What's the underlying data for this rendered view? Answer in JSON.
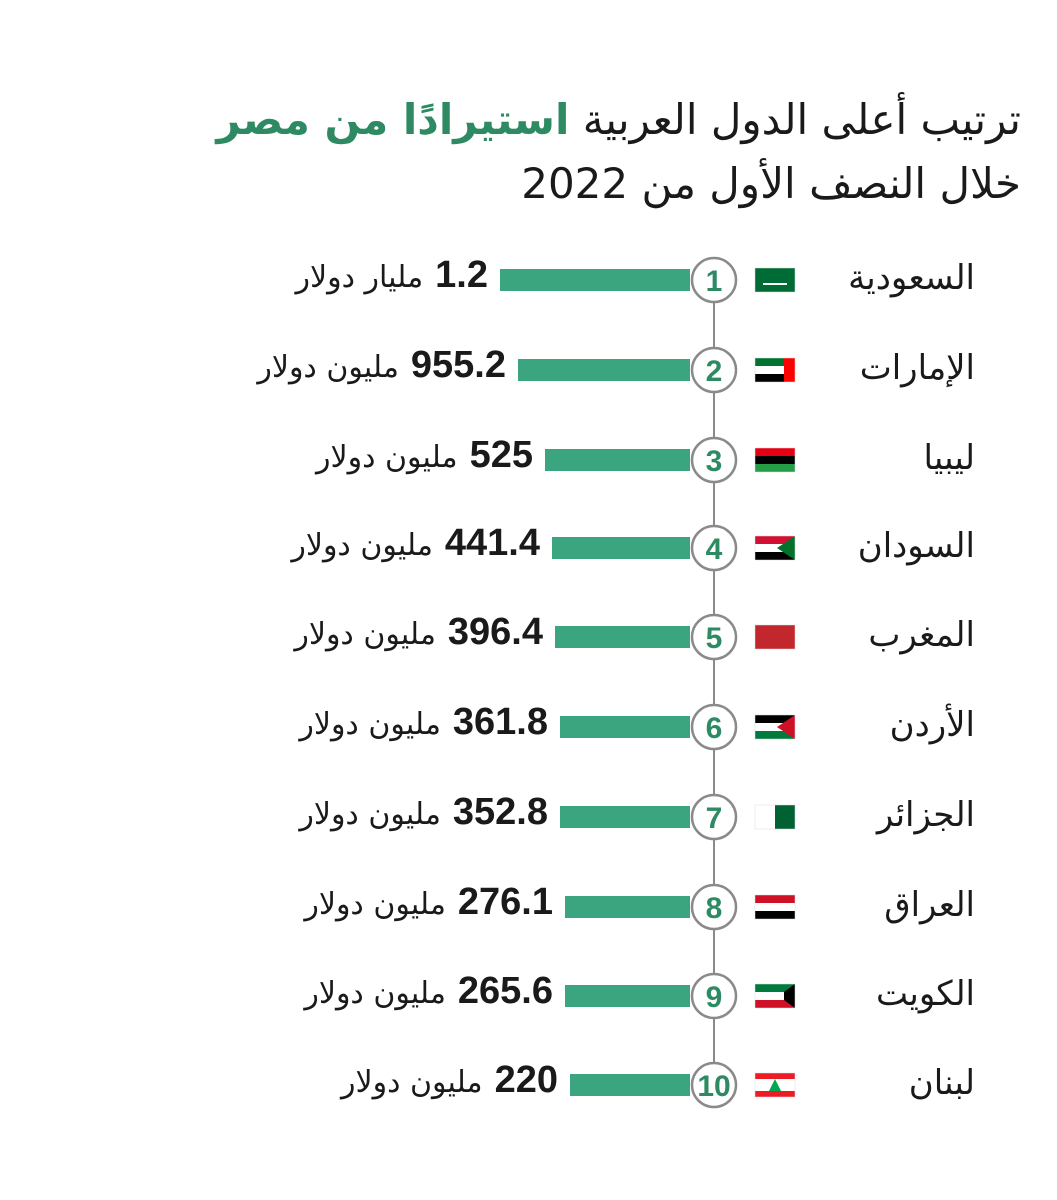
{
  "header": {
    "title_line1": "ترتيب أعلى الدول العربية",
    "title_highlight": "استيرادًا من مصر",
    "title_line2": "خلال النصف الأول من 2022"
  },
  "rows": [
    {
      "rank": "1",
      "country": "السعودية",
      "value": "1.2",
      "unit": "مليار دولار"
    },
    {
      "rank": "2",
      "country": "الإمارات",
      "value": "955.2",
      "unit": "مليون دولار"
    },
    {
      "rank": "3",
      "country": "ليبيا",
      "value": "525",
      "unit": "مليون دولار"
    },
    {
      "rank": "4",
      "country": "السودان",
      "value": "441.4",
      "unit": "مليون دولار"
    },
    {
      "rank": "5",
      "country": "المغرب",
      "value": "396.4",
      "unit": "مليون دولار"
    },
    {
      "rank": "6",
      "country": "الأردن",
      "value": "361.8",
      "unit": "مليون دولار"
    },
    {
      "rank": "7",
      "country": "الجزائر",
      "value": "352.8",
      "unit": "مليون دولار"
    },
    {
      "rank": "8",
      "country": "العراق",
      "value": "276.1",
      "unit": "مليون دولار"
    },
    {
      "rank": "9",
      "country": "الكويت",
      "value": "265.6",
      "unit": "مليون دولار"
    },
    {
      "rank": "10",
      "country": "لبنان",
      "value": "220",
      "unit": "مليون دولار"
    }
  ]
}
